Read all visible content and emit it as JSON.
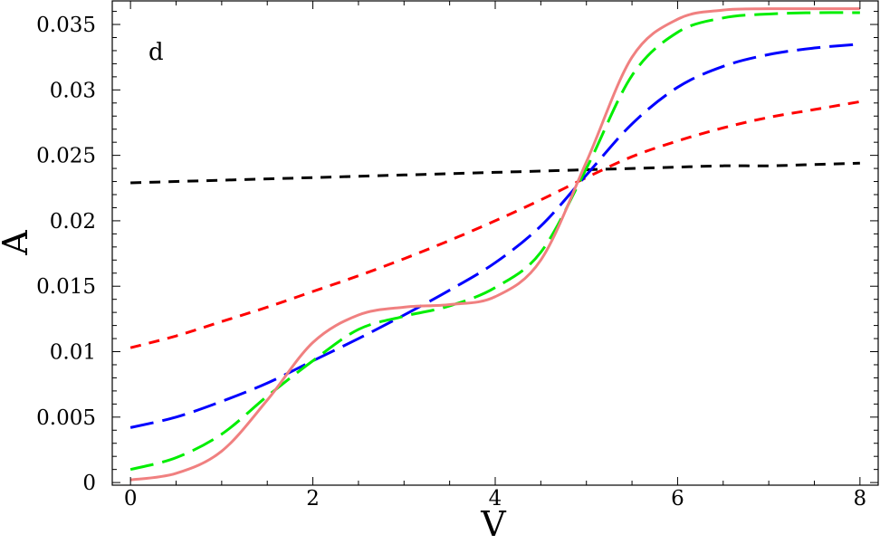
{
  "chart_data": {
    "type": "line",
    "panel_label": "d",
    "xlabel": "V",
    "ylabel": "A",
    "xlim": [
      -0.2,
      8.2
    ],
    "ylim": [
      -0.0002,
      0.0368
    ],
    "x_ticks": [
      0,
      2,
      4,
      6,
      8
    ],
    "x_tick_labels": [
      "0",
      "2",
      "4",
      "6",
      "8"
    ],
    "y_ticks": [
      0,
      0.005,
      0.01,
      0.015,
      0.02,
      0.025,
      0.03,
      0.035
    ],
    "y_tick_labels": [
      "0",
      "0.005",
      "0.01",
      "0.015",
      "0.02",
      "0.025",
      "0.03",
      "0.035"
    ],
    "grid": false,
    "x": [
      0,
      0.5,
      1,
      1.5,
      2,
      2.5,
      3,
      3.5,
      4,
      4.5,
      5,
      5.5,
      6,
      6.5,
      7,
      7.5,
      8
    ],
    "series": [
      {
        "color": "#000000",
        "dash": "short",
        "values": [
          0.0229,
          0.023,
          0.0231,
          0.0232,
          0.0233,
          0.0234,
          0.0235,
          0.0236,
          0.0237,
          0.0238,
          0.0239,
          0.024,
          0.0241,
          0.0242,
          0.0242,
          0.0243,
          0.0244
        ]
      },
      {
        "color": "#ff0000",
        "dash": "short",
        "values": [
          0.0103,
          0.0112,
          0.0123,
          0.0134,
          0.0146,
          0.0158,
          0.0171,
          0.0185,
          0.02,
          0.0216,
          0.0233,
          0.0249,
          0.0261,
          0.0271,
          0.0279,
          0.0285,
          0.0291
        ]
      },
      {
        "color": "#0000ff",
        "dash": "long",
        "values": [
          0.0042,
          0.005,
          0.0062,
          0.0076,
          0.0093,
          0.011,
          0.0128,
          0.0147,
          0.0168,
          0.0196,
          0.0235,
          0.0274,
          0.0302,
          0.0318,
          0.0327,
          0.0332,
          0.0335
        ]
      },
      {
        "color": "#00ee00",
        "dash": "long",
        "values": [
          0.001,
          0.0019,
          0.0037,
          0.0066,
          0.0093,
          0.0117,
          0.0127,
          0.0135,
          0.0149,
          0.0176,
          0.024,
          0.0311,
          0.0344,
          0.0355,
          0.0358,
          0.0359,
          0.0359
        ]
      },
      {
        "color": "#f08080",
        "dash": "solid",
        "values": [
          0.0002,
          0.0007,
          0.0024,
          0.0063,
          0.0107,
          0.0128,
          0.0134,
          0.0136,
          0.0142,
          0.017,
          0.0245,
          0.0325,
          0.0354,
          0.0361,
          0.0362,
          0.0362,
          0.0362
        ]
      }
    ]
  }
}
